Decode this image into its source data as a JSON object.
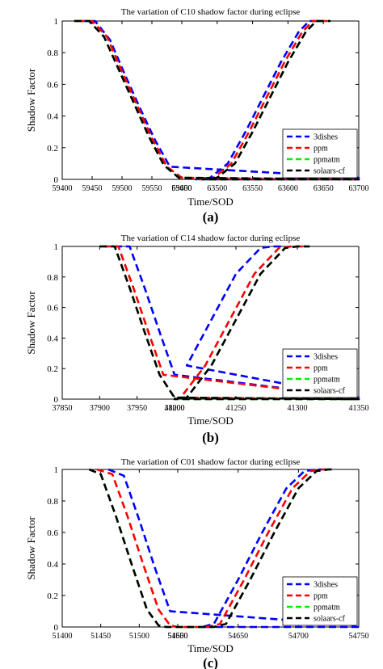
{
  "colors": {
    "3dishes": "#0000ff",
    "ppm": "#ff0000",
    "ppmatm": "#00ee00",
    "solaars-cf": "#000000"
  },
  "chart_data": [
    {
      "type": "line",
      "panel_label": "(a)",
      "title": "The variation of C10 shadow factor during eclipse",
      "xlabel": "Time/SOD",
      "ylabel": "Shadow Factor",
      "axis_break": true,
      "xticks": [
        "59400",
        "59450",
        "59500",
        "59550",
        "59600",
        "63450",
        "63500",
        "63550",
        "63600",
        "63650",
        "63700"
      ],
      "yticks": [
        "0",
        "0.2",
        "0.4",
        "0.6",
        "0.8",
        "1"
      ],
      "ylim": [
        0,
        1
      ],
      "legend_position": "bottom-right",
      "series": [
        {
          "name": "3dishes",
          "x": [
            "59430",
            "59455",
            "59480",
            "59505",
            "59530",
            "59555",
            "59580",
            "59605",
            "59620",
            "63470",
            "63490",
            "63515",
            "63540",
            "63565",
            "63590",
            "63615",
            "63630",
            "63650"
          ],
          "y": [
            1,
            1,
            0.88,
            0.66,
            0.45,
            0.25,
            0.08,
            0.01,
            0,
            0,
            0.01,
            0.1,
            0.3,
            0.52,
            0.74,
            0.93,
            1,
            1
          ]
        },
        {
          "name": "ppm",
          "x": [
            "59425",
            "59450",
            "59475",
            "59500",
            "59525",
            "59550",
            "59575",
            "59600",
            "59615",
            "63475",
            "63495",
            "63520",
            "63545",
            "63570",
            "63595",
            "63620",
            "63635",
            "63655"
          ],
          "y": [
            1,
            1,
            0.9,
            0.68,
            0.47,
            0.26,
            0.08,
            0.01,
            0,
            0,
            0.01,
            0.1,
            0.3,
            0.52,
            0.74,
            0.93,
            1,
            1
          ]
        },
        {
          "name": "ppmatm",
          "x": [
            "59420",
            "59445",
            "59470",
            "59495",
            "59520",
            "59545",
            "59570",
            "59595",
            "59610",
            "63480",
            "63500",
            "63525",
            "63550",
            "63575",
            "63600",
            "63625",
            "63640",
            "63660"
          ],
          "y": [
            1,
            1,
            0.9,
            0.69,
            0.48,
            0.27,
            0.09,
            0.01,
            0,
            0,
            0.01,
            0.1,
            0.3,
            0.52,
            0.74,
            0.93,
            1,
            1
          ]
        },
        {
          "name": "solaars-cf",
          "x": [
            "59420",
            "59445",
            "59470",
            "59495",
            "59520",
            "59545",
            "59570",
            "59595",
            "59610",
            "63480",
            "63500",
            "63525",
            "63550",
            "63575",
            "63600",
            "63625",
            "63640",
            "63660"
          ],
          "y": [
            1,
            1,
            0.9,
            0.69,
            0.48,
            0.27,
            0.09,
            0.01,
            0,
            0,
            0.01,
            0.1,
            0.3,
            0.52,
            0.74,
            0.93,
            1,
            1
          ]
        }
      ]
    },
    {
      "type": "line",
      "panel_label": "(b)",
      "title": "The variation of C14 shadow factor during eclipse",
      "xlabel": "Time/SOD",
      "ylabel": "Shadow Factor",
      "axis_break": true,
      "xticks": [
        "37850",
        "37900",
        "37950",
        "38000",
        "41200",
        "41250",
        "41300",
        "41350"
      ],
      "yticks": [
        "0",
        "0.2",
        "0.4",
        "0.6",
        "0.8",
        "1"
      ],
      "ylim": [
        0,
        1
      ],
      "legend_position": "bottom-right",
      "series": [
        {
          "name": "3dishes",
          "x": [
            "37920",
            "37940",
            "37960",
            "37980",
            "38000",
            "38020",
            "38030",
            "41180",
            "41190",
            "41210",
            "41230",
            "41250",
            "41270",
            "41280",
            "41290"
          ],
          "y": [
            1,
            1,
            0.73,
            0.44,
            0.16,
            0.01,
            0,
            0,
            0.01,
            0.22,
            0.52,
            0.82,
            0.99,
            1,
            1
          ]
        },
        {
          "name": "ppm",
          "x": [
            "37905",
            "37925",
            "37945",
            "37965",
            "37985",
            "38005",
            "38015",
            "41195",
            "41205",
            "41225",
            "41245",
            "41265",
            "41285",
            "41295",
            "41305"
          ],
          "y": [
            1,
            1,
            0.73,
            0.44,
            0.16,
            0.01,
            0,
            0,
            0.01,
            0.22,
            0.52,
            0.82,
            0.99,
            1,
            1
          ]
        },
        {
          "name": "ppmatm",
          "x": [
            "37900",
            "37920",
            "37940",
            "37960",
            "37980",
            "38000",
            "38010",
            "41200",
            "41210",
            "41230",
            "41250",
            "41270",
            "41290",
            "41300",
            "41310"
          ],
          "y": [
            1,
            1,
            0.73,
            0.44,
            0.16,
            0.01,
            0,
            0,
            0.01,
            0.22,
            0.52,
            0.82,
            0.99,
            1,
            1
          ]
        },
        {
          "name": "solaars-cf",
          "x": [
            "37900",
            "37920",
            "37940",
            "37960",
            "37980",
            "38000",
            "38010",
            "41200",
            "41210",
            "41230",
            "41250",
            "41270",
            "41290",
            "41300",
            "41310"
          ],
          "y": [
            1,
            1,
            0.73,
            0.44,
            0.16,
            0.01,
            0,
            0,
            0.01,
            0.22,
            0.52,
            0.82,
            0.99,
            1,
            1
          ]
        }
      ]
    },
    {
      "type": "line",
      "panel_label": "(c)",
      "title": "The variation of C01 shadow factor during eclipse",
      "xlabel": "Time/SOD",
      "ylabel": "Shadow Factor",
      "axis_break": true,
      "xticks": [
        "51400",
        "51450",
        "51500",
        "51550",
        "54600",
        "54650",
        "54700",
        "54750"
      ],
      "yticks": [
        "0",
        "0.2",
        "0.4",
        "0.6",
        "0.8",
        "1"
      ],
      "ylim": [
        0,
        1
      ],
      "legend_position": "bottom-right",
      "series": [
        {
          "name": "3dishes",
          "x": [
            "51460",
            "51480",
            "51500",
            "51520",
            "51540",
            "51555",
            "51565",
            "54620",
            "54630",
            "54650",
            "54670",
            "54690",
            "54705",
            "54715",
            "54720"
          ],
          "y": [
            1,
            0.96,
            0.68,
            0.38,
            0.1,
            0.01,
            0,
            0,
            0.02,
            0.3,
            0.6,
            0.88,
            0.99,
            1,
            1
          ]
        },
        {
          "name": "ppm",
          "x": [
            "51445",
            "51465",
            "51485",
            "51505",
            "51525",
            "51540",
            "51550",
            "54625",
            "54635",
            "54655",
            "54675",
            "54695",
            "54710",
            "54720",
            "54725"
          ],
          "y": [
            1,
            0.97,
            0.7,
            0.4,
            0.11,
            0.01,
            0,
            0,
            0.02,
            0.3,
            0.6,
            0.88,
            0.99,
            1,
            1
          ]
        },
        {
          "name": "ppmatm",
          "x": [
            "51435",
            "51450",
            "51470",
            "51490",
            "51510",
            "51525",
            "51535",
            "54630",
            "54640",
            "54660",
            "54680",
            "54700",
            "54715",
            "54725",
            "54730"
          ],
          "y": [
            1,
            0.97,
            0.7,
            0.4,
            0.11,
            0.01,
            0,
            0,
            0.02,
            0.3,
            0.6,
            0.88,
            0.99,
            1,
            1
          ]
        },
        {
          "name": "solaars-cf",
          "x": [
            "51435",
            "51450",
            "51470",
            "51490",
            "51510",
            "51525",
            "51535",
            "54630",
            "54640",
            "54660",
            "54680",
            "54700",
            "54715",
            "54725",
            "54730"
          ],
          "y": [
            1,
            0.97,
            0.7,
            0.4,
            0.11,
            0.01,
            0,
            0,
            0.02,
            0.3,
            0.6,
            0.88,
            0.99,
            1,
            1
          ]
        }
      ]
    }
  ]
}
